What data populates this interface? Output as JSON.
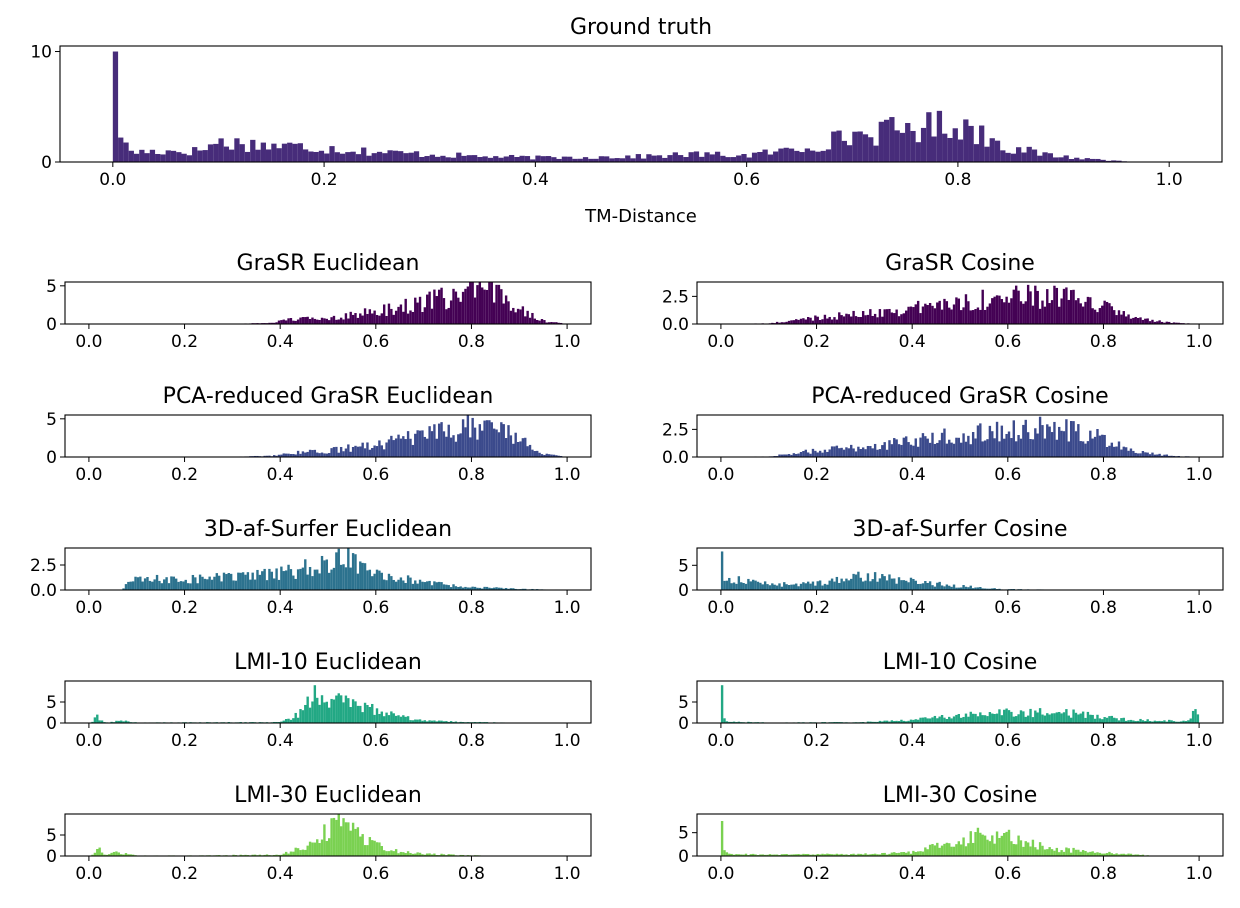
{
  "chart_data": [
    {
      "id": "ground-truth",
      "type": "bar",
      "title": "Ground truth",
      "xlabel": "TM-Distance",
      "ylabel": "",
      "xlim": [
        -0.05,
        1.05
      ],
      "ylim": [
        0,
        10.5
      ],
      "xticks": [
        0.0,
        0.2,
        0.4,
        0.6,
        0.8,
        1.0
      ],
      "xtick_labels": [
        "0.0",
        "0.2",
        "0.4",
        "0.6",
        "0.8",
        "1.0"
      ],
      "yticks": [
        0,
        10
      ],
      "ytick_labels": [
        "0",
        "10"
      ],
      "color": "#472c7a",
      "profile": [
        [
          0.0,
          10.0
        ],
        [
          0.005,
          3.7
        ],
        [
          0.012,
          1.4
        ],
        [
          0.02,
          0.9
        ],
        [
          0.05,
          1.0
        ],
        [
          0.08,
          1.0
        ],
        [
          0.1,
          1.8
        ],
        [
          0.15,
          1.5
        ],
        [
          0.2,
          1.3
        ],
        [
          0.25,
          0.9
        ],
        [
          0.3,
          0.7
        ],
        [
          0.35,
          0.5
        ],
        [
          0.4,
          0.4
        ],
        [
          0.45,
          0.45
        ],
        [
          0.5,
          0.5
        ],
        [
          0.55,
          0.7
        ],
        [
          0.6,
          0.6
        ],
        [
          0.65,
          1.2
        ],
        [
          0.7,
          2.4
        ],
        [
          0.75,
          3.0
        ],
        [
          0.8,
          3.5
        ],
        [
          0.85,
          1.3
        ],
        [
          0.88,
          0.7
        ],
        [
          0.92,
          0.3
        ],
        [
          0.95,
          0.15
        ],
        [
          0.97,
          0.0
        ]
      ]
    },
    {
      "id": "grasr-euclidean",
      "type": "bar",
      "title": "GraSR Euclidean",
      "xlim": [
        -0.05,
        1.05
      ],
      "ylim": [
        0,
        5.5
      ],
      "xticks": [
        0.0,
        0.2,
        0.4,
        0.6,
        0.8,
        1.0
      ],
      "xtick_labels": [
        "0.0",
        "0.2",
        "0.4",
        "0.6",
        "0.8",
        "1.0"
      ],
      "yticks": [
        0,
        5
      ],
      "ytick_labels": [
        "0",
        "5"
      ],
      "color": "#440154",
      "profile": [
        [
          0.0,
          0.0
        ],
        [
          0.3,
          0.03
        ],
        [
          0.38,
          0.15
        ],
        [
          0.42,
          0.6
        ],
        [
          0.5,
          0.8
        ],
        [
          0.6,
          1.6
        ],
        [
          0.7,
          2.8
        ],
        [
          0.8,
          4.2
        ],
        [
          0.85,
          4.0
        ],
        [
          0.9,
          2.4
        ],
        [
          0.93,
          1.0
        ],
        [
          0.96,
          0.3
        ],
        [
          1.0,
          0.0
        ]
      ]
    },
    {
      "id": "grasr-cosine",
      "type": "bar",
      "title": "GraSR Cosine",
      "xlim": [
        -0.05,
        1.05
      ],
      "ylim": [
        0,
        3.8
      ],
      "xticks": [
        0.0,
        0.2,
        0.4,
        0.6,
        0.8,
        1.0
      ],
      "xtick_labels": [
        "0.0",
        "0.2",
        "0.4",
        "0.6",
        "0.8",
        "1.0"
      ],
      "yticks": [
        0.0,
        2.5
      ],
      "ytick_labels": [
        "0.0",
        "2.5"
      ],
      "color": "#440154",
      "profile": [
        [
          0.0,
          0.0
        ],
        [
          0.1,
          0.05
        ],
        [
          0.15,
          0.3
        ],
        [
          0.2,
          0.6
        ],
        [
          0.3,
          0.9
        ],
        [
          0.4,
          1.4
        ],
        [
          0.5,
          2.0
        ],
        [
          0.6,
          2.4
        ],
        [
          0.7,
          2.5
        ],
        [
          0.8,
          1.6
        ],
        [
          0.85,
          0.8
        ],
        [
          0.9,
          0.3
        ],
        [
          0.95,
          0.1
        ],
        [
          1.0,
          0.0
        ]
      ]
    },
    {
      "id": "pca-grasr-euclidean",
      "type": "bar",
      "title": "PCA-reduced GraSR Euclidean",
      "xlim": [
        -0.05,
        1.05
      ],
      "ylim": [
        0,
        5.5
      ],
      "xticks": [
        0.0,
        0.2,
        0.4,
        0.6,
        0.8,
        1.0
      ],
      "xtick_labels": [
        "0.0",
        "0.2",
        "0.4",
        "0.6",
        "0.8",
        "1.0"
      ],
      "yticks": [
        0,
        5
      ],
      "ytick_labels": [
        "0",
        "5"
      ],
      "color": "#3b4a8c",
      "profile": [
        [
          0.0,
          0.0
        ],
        [
          0.3,
          0.03
        ],
        [
          0.38,
          0.15
        ],
        [
          0.42,
          0.5
        ],
        [
          0.5,
          0.8
        ],
        [
          0.6,
          1.6
        ],
        [
          0.7,
          2.7
        ],
        [
          0.8,
          4.0
        ],
        [
          0.85,
          4.0
        ],
        [
          0.9,
          2.4
        ],
        [
          0.93,
          1.0
        ],
        [
          0.96,
          0.3
        ],
        [
          1.0,
          0.0
        ]
      ]
    },
    {
      "id": "pca-grasr-cosine",
      "type": "bar",
      "title": "PCA-reduced GraSR Cosine",
      "xlim": [
        -0.05,
        1.05
      ],
      "ylim": [
        0,
        3.8
      ],
      "xticks": [
        0.0,
        0.2,
        0.4,
        0.6,
        0.8,
        1.0
      ],
      "xtick_labels": [
        "0.0",
        "0.2",
        "0.4",
        "0.6",
        "0.8",
        "1.0"
      ],
      "yticks": [
        0.0,
        2.5
      ],
      "ytick_labels": [
        "0.0",
        "2.5"
      ],
      "color": "#3b4a8c",
      "profile": [
        [
          0.0,
          0.0
        ],
        [
          0.1,
          0.05
        ],
        [
          0.15,
          0.3
        ],
        [
          0.2,
          0.6
        ],
        [
          0.3,
          0.9
        ],
        [
          0.4,
          1.4
        ],
        [
          0.5,
          2.0
        ],
        [
          0.6,
          2.4
        ],
        [
          0.7,
          2.6
        ],
        [
          0.8,
          1.7
        ],
        [
          0.85,
          0.8
        ],
        [
          0.9,
          0.3
        ],
        [
          0.95,
          0.1
        ],
        [
          1.0,
          0.0
        ]
      ]
    },
    {
      "id": "af-surfer-euclidean",
      "type": "bar",
      "title": "3D-af-Surfer Euclidean",
      "xlim": [
        -0.05,
        1.05
      ],
      "ylim": [
        0,
        4.2
      ],
      "xticks": [
        0.0,
        0.2,
        0.4,
        0.6,
        0.8,
        1.0
      ],
      "xtick_labels": [
        "0.0",
        "0.2",
        "0.4",
        "0.6",
        "0.8",
        "1.0"
      ],
      "yticks": [
        0.0,
        2.5
      ],
      "ytick_labels": [
        "0.0",
        "2.5"
      ],
      "color": "#2c728e",
      "profile": [
        [
          0.0,
          0.0
        ],
        [
          0.07,
          0.0
        ],
        [
          0.08,
          0.8
        ],
        [
          0.1,
          1.0
        ],
        [
          0.2,
          1.1
        ],
        [
          0.3,
          1.3
        ],
        [
          0.4,
          1.6
        ],
        [
          0.5,
          2.6
        ],
        [
          0.55,
          3.2
        ],
        [
          0.6,
          2.0
        ],
        [
          0.65,
          1.2
        ],
        [
          0.7,
          0.7
        ],
        [
          0.8,
          0.3
        ],
        [
          0.9,
          0.1
        ],
        [
          1.0,
          0.02
        ]
      ]
    },
    {
      "id": "af-surfer-cosine",
      "type": "bar",
      "title": "3D-af-Surfer Cosine",
      "xlim": [
        -0.05,
        1.05
      ],
      "ylim": [
        0,
        8.5
      ],
      "xticks": [
        0.0,
        0.2,
        0.4,
        0.6,
        0.8,
        1.0
      ],
      "xtick_labels": [
        "0.0",
        "0.2",
        "0.4",
        "0.6",
        "0.8",
        "1.0"
      ],
      "yticks": [
        0,
        5
      ],
      "ytick_labels": [
        "0",
        "5"
      ],
      "color": "#2c728e",
      "profile": [
        [
          0.0,
          7.8
        ],
        [
          0.005,
          1.5
        ],
        [
          0.02,
          2.2
        ],
        [
          0.05,
          1.8
        ],
        [
          0.1,
          1.3
        ],
        [
          0.15,
          1.0
        ],
        [
          0.2,
          1.5
        ],
        [
          0.25,
          2.0
        ],
        [
          0.3,
          2.8
        ],
        [
          0.35,
          2.2
        ],
        [
          0.4,
          1.8
        ],
        [
          0.45,
          1.2
        ],
        [
          0.5,
          0.8
        ],
        [
          0.55,
          0.4
        ],
        [
          0.6,
          0.15
        ],
        [
          0.7,
          0.05
        ],
        [
          1.0,
          0.0
        ]
      ]
    },
    {
      "id": "lmi10-euclidean",
      "type": "bar",
      "title": "LMI-10 Euclidean",
      "xlim": [
        -0.05,
        1.05
      ],
      "ylim": [
        0,
        10
      ],
      "xticks": [
        0.0,
        0.2,
        0.4,
        0.6,
        0.8,
        1.0
      ],
      "xtick_labels": [
        "0.0",
        "0.2",
        "0.4",
        "0.6",
        "0.8",
        "1.0"
      ],
      "yticks": [
        0,
        5
      ],
      "ytick_labels": [
        "0",
        "5"
      ],
      "color": "#22a884",
      "profile": [
        [
          0.0,
          0.0
        ],
        [
          0.01,
          0.3
        ],
        [
          0.015,
          1.8
        ],
        [
          0.025,
          0.5
        ],
        [
          0.04,
          0.1
        ],
        [
          0.07,
          0.6
        ],
        [
          0.1,
          0.1
        ],
        [
          0.4,
          0.2
        ],
        [
          0.44,
          2.0
        ],
        [
          0.47,
          7.0
        ],
        [
          0.5,
          5.5
        ],
        [
          0.55,
          4.5
        ],
        [
          0.6,
          3.0
        ],
        [
          0.65,
          1.5
        ],
        [
          0.7,
          0.5
        ],
        [
          0.8,
          0.2
        ],
        [
          0.9,
          0.05
        ],
        [
          1.0,
          0.0
        ]
      ]
    },
    {
      "id": "lmi10-cosine",
      "type": "bar",
      "title": "LMI-10 Cosine",
      "xlim": [
        -0.05,
        1.05
      ],
      "ylim": [
        0,
        10
      ],
      "xticks": [
        0.0,
        0.2,
        0.4,
        0.6,
        0.8,
        1.0
      ],
      "xtick_labels": [
        "0.0",
        "0.2",
        "0.4",
        "0.6",
        "0.8",
        "1.0"
      ],
      "yticks": [
        0,
        5
      ],
      "ytick_labels": [
        "0",
        "5"
      ],
      "color": "#22a884",
      "profile": [
        [
          0.0,
          9.0
        ],
        [
          0.005,
          1.0
        ],
        [
          0.02,
          0.3
        ],
        [
          0.1,
          0.1
        ],
        [
          0.3,
          0.2
        ],
        [
          0.4,
          0.8
        ],
        [
          0.5,
          1.8
        ],
        [
          0.6,
          2.4
        ],
        [
          0.7,
          2.6
        ],
        [
          0.8,
          1.6
        ],
        [
          0.85,
          0.8
        ],
        [
          0.9,
          0.6
        ],
        [
          0.98,
          0.5
        ],
        [
          0.995,
          3.8
        ],
        [
          1.0,
          0.0
        ]
      ]
    },
    {
      "id": "lmi30-euclidean",
      "type": "bar",
      "title": "LMI-30 Euclidean",
      "xlim": [
        -0.05,
        1.05
      ],
      "ylim": [
        0,
        10
      ],
      "xticks": [
        0.0,
        0.2,
        0.4,
        0.6,
        0.8,
        1.0
      ],
      "xtick_labels": [
        "0.0",
        "0.2",
        "0.4",
        "0.6",
        "0.8",
        "1.0"
      ],
      "yticks": [
        0,
        5
      ],
      "ytick_labels": [
        "0",
        "5"
      ],
      "color": "#7ad151",
      "profile": [
        [
          0.0,
          0.0
        ],
        [
          0.01,
          0.3
        ],
        [
          0.02,
          2.6
        ],
        [
          0.03,
          0.3
        ],
        [
          0.06,
          0.8
        ],
        [
          0.1,
          0.1
        ],
        [
          0.2,
          0.1
        ],
        [
          0.4,
          0.3
        ],
        [
          0.45,
          2.0
        ],
        [
          0.5,
          6.0
        ],
        [
          0.53,
          8.0
        ],
        [
          0.56,
          5.0
        ],
        [
          0.6,
          2.5
        ],
        [
          0.65,
          1.0
        ],
        [
          0.7,
          0.5
        ],
        [
          0.8,
          0.15
        ],
        [
          0.9,
          0.03
        ],
        [
          1.0,
          0.0
        ]
      ]
    },
    {
      "id": "lmi30-cosine",
      "type": "bar",
      "title": "LMI-30 Cosine",
      "xlim": [
        -0.05,
        1.05
      ],
      "ylim": [
        0,
        9
      ],
      "xticks": [
        0.0,
        0.2,
        0.4,
        0.6,
        0.8,
        1.0
      ],
      "xtick_labels": [
        "0.0",
        "0.2",
        "0.4",
        "0.6",
        "0.8",
        "1.0"
      ],
      "yticks": [
        0,
        5
      ],
      "ytick_labels": [
        "0",
        "5"
      ],
      "color": "#7ad151",
      "profile": [
        [
          0.0,
          7.5
        ],
        [
          0.005,
          1.0
        ],
        [
          0.02,
          0.4
        ],
        [
          0.1,
          0.3
        ],
        [
          0.3,
          0.4
        ],
        [
          0.4,
          0.7
        ],
        [
          0.45,
          2.0
        ],
        [
          0.5,
          3.5
        ],
        [
          0.55,
          4.5
        ],
        [
          0.6,
          4.0
        ],
        [
          0.65,
          2.5
        ],
        [
          0.7,
          1.5
        ],
        [
          0.8,
          0.7
        ],
        [
          0.85,
          0.4
        ],
        [
          0.9,
          0.1
        ],
        [
          0.95,
          0.0
        ],
        [
          1.0,
          0.0
        ]
      ]
    }
  ]
}
